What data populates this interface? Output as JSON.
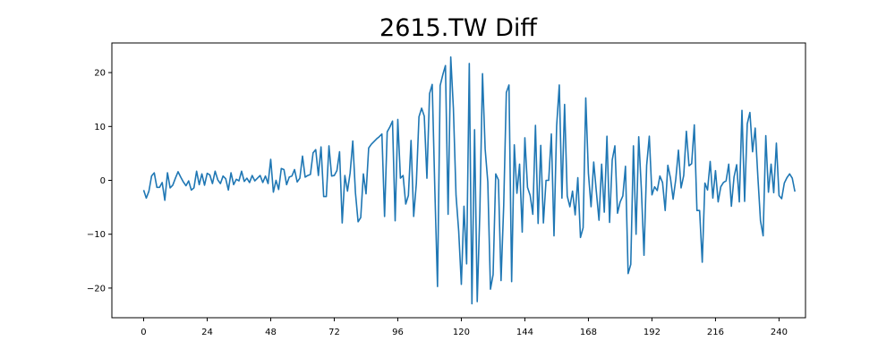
{
  "chart_data": {
    "type": "line",
    "title": "2615.TW Diff",
    "xlabel": "",
    "ylabel": "",
    "xlim": [
      -12,
      250
    ],
    "ylim": [
      -25.5,
      25.5
    ],
    "x_ticks": [
      0,
      24,
      48,
      72,
      96,
      120,
      144,
      168,
      192,
      216,
      240
    ],
    "y_ticks": [
      -20,
      -10,
      0,
      10,
      20
    ],
    "grid": false,
    "legend": "none",
    "series": [
      {
        "color": "#1f77b4",
        "x_start": 0,
        "x_step": 1,
        "values": [
          -1.8,
          -3.3,
          -2.0,
          0.8,
          1.4,
          -1.3,
          -1.3,
          -0.4,
          -3.7,
          1.4,
          -1.4,
          -0.9,
          0.4,
          1.6,
          0.6,
          -0.3,
          -1.0,
          -0.1,
          -1.8,
          -1.4,
          1.7,
          -0.8,
          1.2,
          -0.9,
          1.3,
          1.0,
          -0.6,
          1.7,
          0.1,
          -0.6,
          0.8,
          0.3,
          -1.8,
          1.4,
          -0.8,
          0.2,
          -0.1,
          1.7,
          -0.2,
          0.4,
          -0.4,
          0.9,
          -0.1,
          0.4,
          0.9,
          -0.4,
          0.8,
          -0.6,
          3.9,
          -2.2,
          0.0,
          -1.7,
          2.2,
          2.0,
          -0.8,
          0.6,
          0.8,
          2.0,
          -0.3,
          0.4,
          4.5,
          0.6,
          0.9,
          1.1,
          5.1,
          5.7,
          0.9,
          6.2,
          -3.0,
          -3.0,
          6.4,
          0.8,
          0.9,
          1.8,
          5.3,
          -7.9,
          0.9,
          -2.0,
          1.4,
          7.3,
          -2.3,
          -7.7,
          -6.9,
          1.2,
          -2.5,
          6.0,
          6.7,
          7.2,
          7.7,
          8.1,
          8.6,
          -6.7,
          9.0,
          9.9,
          11.0,
          -7.5,
          11.3,
          0.4,
          0.9,
          -4.4,
          -2.8,
          7.4,
          -6.7,
          -0.6,
          11.8,
          13.4,
          11.9,
          0.4,
          16.1,
          17.8,
          -1.9,
          -19.7,
          17.6,
          19.6,
          21.3,
          -6.3,
          22.9,
          13.4,
          -2.8,
          -9.4,
          -19.3,
          -4.8,
          -15.5,
          21.7,
          -22.9,
          9.4,
          -22.5,
          -5.8,
          19.8,
          5.8,
          -0.3,
          -20.2,
          -17.5,
          1.2,
          0.1,
          -18.6,
          -4.7,
          16.3,
          17.7,
          -18.8,
          6.6,
          -2.4,
          3.0,
          -9.6,
          7.9,
          -1.3,
          -2.8,
          -6.3,
          10.2,
          -8.0,
          6.5,
          -7.9,
          0.0,
          0.0,
          8.6,
          -10.3,
          10.1,
          17.7,
          -3.3,
          14.1,
          -2.9,
          -4.9,
          -2.0,
          -6.4,
          0.5,
          -10.6,
          -8.8,
          15.3,
          1.3,
          -4.9,
          3.4,
          -2.1,
          -7.4,
          3.0,
          -5.9,
          8.2,
          -7.8,
          3.8,
          6.4,
          -6.1,
          -4.0,
          -2.9,
          2.6,
          -17.3,
          -15.6,
          6.4,
          -10.0,
          8.1,
          -1.6,
          -13.9,
          2.8,
          8.2,
          -2.7,
          -1.2,
          -1.9,
          0.8,
          -0.4,
          -5.6,
          2.8,
          0.4,
          -3.5,
          0.2,
          5.6,
          -1.4,
          0.9,
          9.1,
          2.7,
          3.1,
          10.3,
          -5.6,
          -5.6,
          -15.2,
          -0.5,
          -1.8,
          3.5,
          -3.3,
          1.8,
          -4.0,
          -1.2,
          -0.4,
          -0.1,
          3.0,
          -4.8,
          0.6,
          2.9,
          -4.0,
          13.0,
          -3.9,
          10.5,
          12.6,
          5.3,
          9.7,
          0.7,
          -7.5,
          -10.3,
          8.3,
          -2.2,
          3.0,
          -2.3,
          6.9,
          -2.8,
          -3.4,
          -0.5,
          0.5,
          1.2,
          0.4,
          -2.1
        ]
      }
    ]
  }
}
